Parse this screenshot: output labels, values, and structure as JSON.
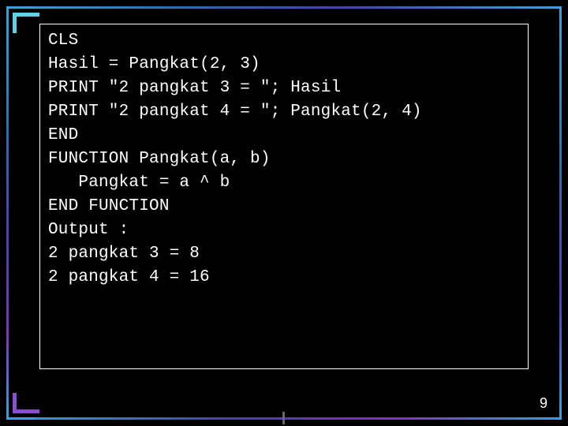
{
  "slide": {
    "background_color": "#000000",
    "frame_colors": [
      "#3aa0d8",
      "#2a6fb0",
      "#4a3fb0",
      "#7a35c0",
      "#5fd0e8",
      "#8a4fd0"
    ],
    "code_border_color": "#ffffff",
    "text_color": "#ffffff",
    "font_family": "Courier New",
    "font_size_pt": 16,
    "page_number": "9",
    "code_lines": [
      "CLS",
      "Hasil = Pangkat(2, 3)",
      "PRINT \"2 pangkat 3 = \"; Hasil",
      "PRINT \"2 pangkat 4 = \"; Pangkat(2, 4)",
      "END",
      "",
      "FUNCTION Pangkat(a, b)",
      "   Pangkat = a ^ b",
      "END FUNCTION",
      "",
      "",
      "Output :",
      "2 pangkat 3 = 8",
      "2 pangkat 4 = 16"
    ]
  }
}
